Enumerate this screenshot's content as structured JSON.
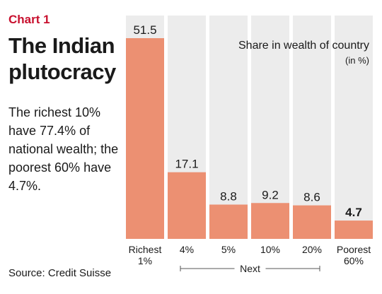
{
  "header": {
    "kicker": "Chart 1",
    "title": "The Indian plutocracy",
    "deck": "The richest 10% have 77.4% of national wealth; the poorest 60% have 4.7%."
  },
  "legend": {
    "title": "Share in wealth of country",
    "unit": "(in %)"
  },
  "footer": {
    "source": "Source: Credit Suisse"
  },
  "group_label": "Next",
  "colors": {
    "bar": "#ec9072",
    "column_bg": "#ececec",
    "accent": "#c8102e"
  },
  "chart_data": {
    "type": "bar",
    "title": "Share in wealth of country",
    "ylabel": "(in %)",
    "categories": [
      [
        "Richest",
        "1%"
      ],
      [
        "4%"
      ],
      [
        "5%"
      ],
      [
        "10%"
      ],
      [
        "20%"
      ],
      [
        "Poorest",
        "60%"
      ]
    ],
    "values": [
      51.5,
      17.1,
      8.8,
      9.2,
      8.6,
      4.7
    ],
    "value_labels": [
      "51.5",
      "17.1",
      "8.8",
      "9.2",
      "8.6",
      "4.7"
    ],
    "bold_values": [
      false,
      false,
      false,
      false,
      false,
      true
    ],
    "ylim": [
      0,
      51.5
    ],
    "grid": false,
    "legend": "none"
  }
}
